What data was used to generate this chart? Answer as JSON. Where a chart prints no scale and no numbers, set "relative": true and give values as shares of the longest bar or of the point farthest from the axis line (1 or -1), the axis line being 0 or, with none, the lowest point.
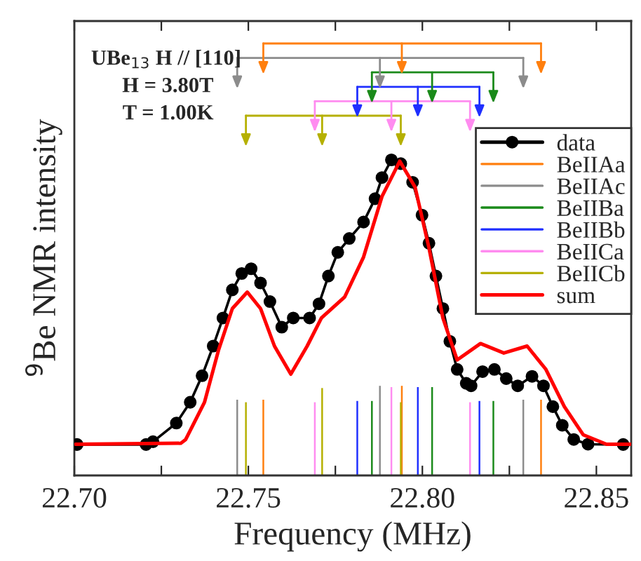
{
  "chart_data": {
    "type": "line",
    "relative": true,
    "xlabel": "Frequency (MHz)",
    "ylabel": "$^{9}$Be NMR intensity",
    "annotations": [
      "UBe$_{13}$ H // [110]",
      "H = 3.80T",
      "T = 1.00K"
    ],
    "xlim": [
      22.7,
      22.86
    ],
    "xticks": [
      {
        "value": 22.7,
        "label": "22.70"
      },
      {
        "value": 22.725,
        "label": null
      },
      {
        "value": 22.75,
        "label": "22.75"
      },
      {
        "value": 22.775,
        "label": null
      },
      {
        "value": 22.8,
        "label": "22.80"
      },
      {
        "value": 22.825,
        "label": null
      },
      {
        "value": 22.85,
        "label": "22.85"
      }
    ],
    "grid": false,
    "legend": "right",
    "series": [
      {
        "name": "data",
        "color": "#000000",
        "marker": "circle",
        "x": [
          22.7008,
          22.7206,
          22.7226,
          22.7293,
          22.7333,
          22.7367,
          22.7399,
          22.7427,
          22.7454,
          22.7481,
          22.7508,
          22.7535,
          22.7562,
          22.7596,
          22.7629,
          22.7676,
          22.7703,
          22.773,
          22.7757,
          22.779,
          22.7831,
          22.7864,
          22.7884,
          22.7911,
          22.7938,
          22.7972,
          22.7999,
          22.8019,
          22.8039,
          22.8059,
          22.8079,
          22.81,
          22.8126,
          22.814,
          22.8173,
          22.8207,
          22.8241,
          22.8274,
          22.8315,
          22.8348,
          22.8375,
          22.8402,
          22.8435,
          22.8476,
          22.8577
        ],
        "values": [
          0.098,
          0.098,
          0.107,
          0.166,
          0.232,
          0.316,
          0.41,
          0.499,
          0.588,
          0.64,
          0.655,
          0.61,
          0.551,
          0.47,
          0.499,
          0.499,
          0.544,
          0.632,
          0.707,
          0.751,
          0.803,
          0.877,
          0.944,
          1.0,
          0.988,
          0.929,
          0.825,
          0.736,
          0.632,
          0.529,
          0.425,
          0.336,
          0.292,
          0.284,
          0.329,
          0.336,
          0.307,
          0.284,
          0.314,
          0.284,
          0.218,
          0.159,
          0.114,
          0.099,
          0.098
        ]
      },
      {
        "name": "BeIIAa",
        "type": "bar",
        "color": "#ff7f0e",
        "x": [
          22.7543,
          22.7941,
          22.8341
        ],
        "values": [
          0.24,
          0.284,
          0.24
        ]
      },
      {
        "name": "BeIIAc",
        "type": "bar",
        "color": "#8c8c8c",
        "x": [
          22.7468,
          22.7878,
          22.829
        ],
        "values": [
          0.24,
          0.284,
          0.24
        ]
      },
      {
        "name": "BeIIBa",
        "type": "bar",
        "color": "#1a8a1a",
        "x": [
          22.7855,
          22.8028,
          22.8204
        ],
        "values": [
          0.236,
          0.28,
          0.236
        ]
      },
      {
        "name": "BeIIBb",
        "type": "bar",
        "color": "#1f2fff",
        "x": [
          22.7813,
          22.7987,
          22.8164
        ],
        "values": [
          0.236,
          0.28,
          0.236
        ]
      },
      {
        "name": "BeIICa",
        "type": "bar",
        "color": "#ff8cf0",
        "x": [
          22.7691,
          22.7911,
          22.8137
        ],
        "values": [
          0.232,
          0.28,
          0.232
        ]
      },
      {
        "name": "BeIICb",
        "type": "bar",
        "color": "#b5b000",
        "x": [
          22.7493,
          22.7712,
          22.7938
        ],
        "values": [
          0.232,
          0.277,
          0.232
        ]
      },
      {
        "name": "sum",
        "color": "#ff0000",
        "x": [
          22.7004,
          22.7306,
          22.732,
          22.7374,
          22.7414,
          22.7454,
          22.7497,
          22.7535,
          22.7575,
          22.7622,
          22.7669,
          22.771,
          22.7777,
          22.7831,
          22.7884,
          22.7935,
          22.7979,
          22.8019,
          22.8059,
          22.81,
          22.8167,
          22.8234,
          22.8301,
          22.8355,
          22.8408,
          22.8462,
          22.8529,
          22.8597
        ],
        "values": [
          0.099,
          0.102,
          0.114,
          0.232,
          0.396,
          0.529,
          0.581,
          0.529,
          0.41,
          0.321,
          0.41,
          0.499,
          0.566,
          0.692,
          0.884,
          0.996,
          0.914,
          0.721,
          0.499,
          0.366,
          0.418,
          0.388,
          0.41,
          0.336,
          0.218,
          0.129,
          0.099,
          0.099
        ]
      }
    ]
  }
}
